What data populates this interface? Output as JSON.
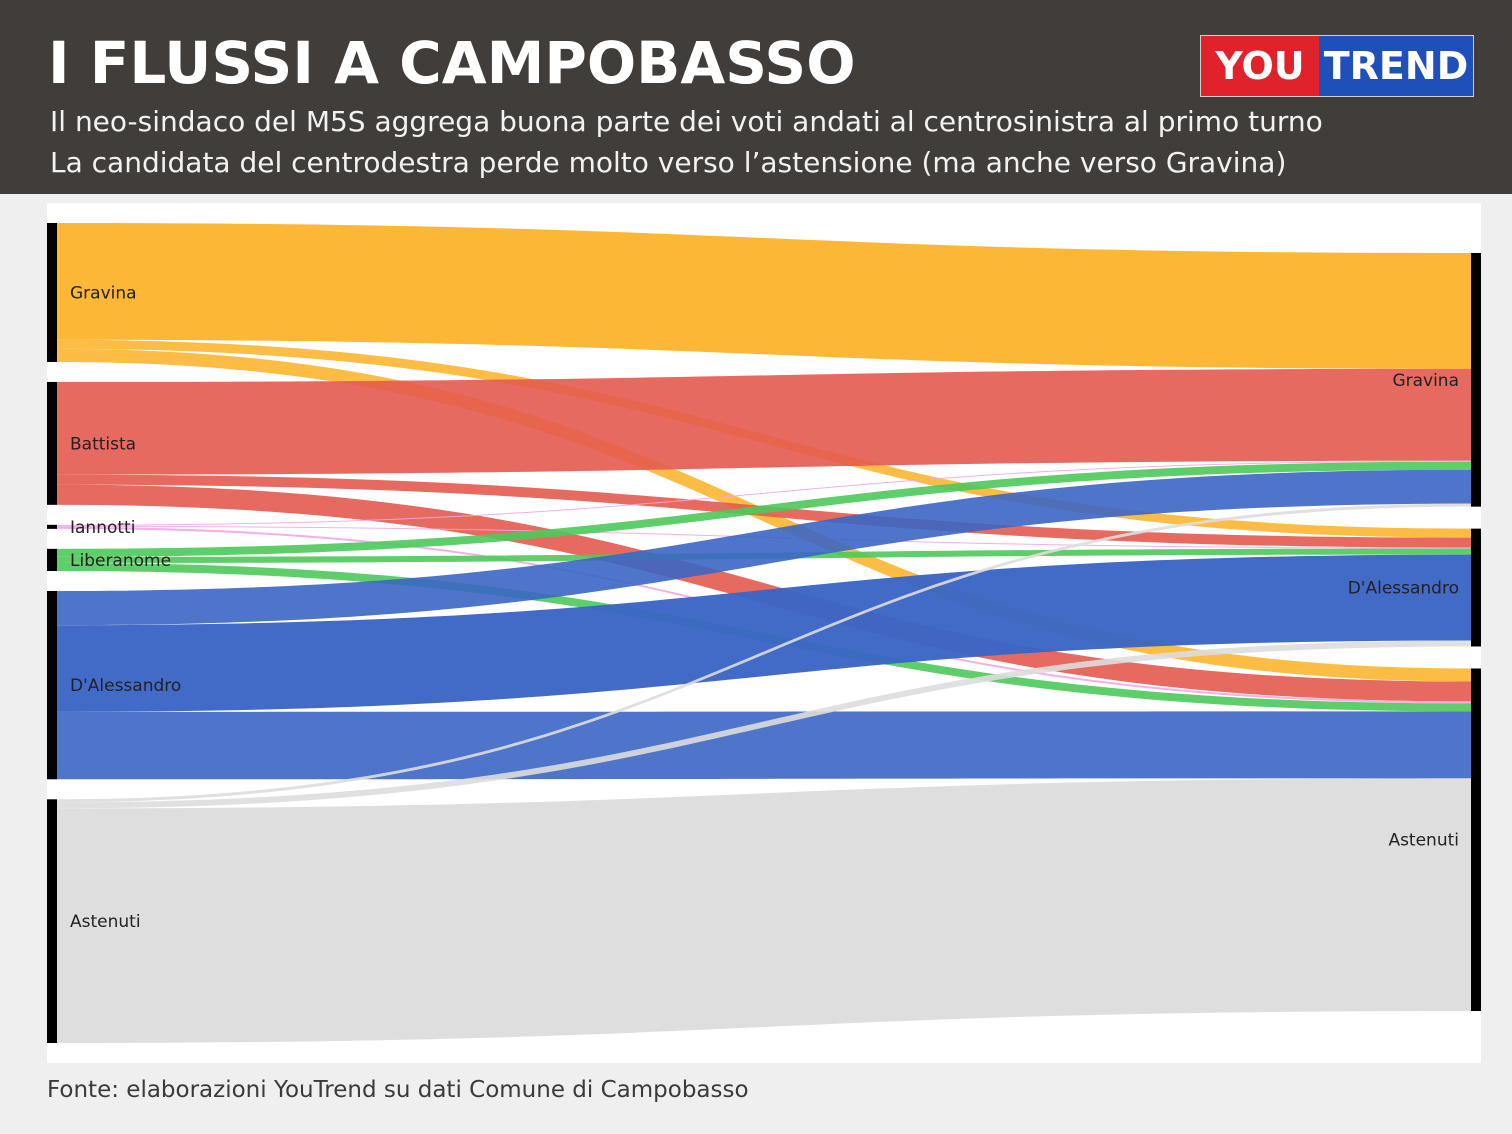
{
  "header": {
    "title": "I FLUSSI A CAMPOBASSO",
    "subtitle_1": "Il neo-sindaco del M5S aggrega buona parte dei voti andati al centrosinistra al primo turno",
    "subtitle_2": "La candidata del centrodestra perde molto verso l’astensione (ma anche verso Gravina)"
  },
  "logo": {
    "part1": "YOU",
    "part2": "TREND",
    "colors": {
      "part1": "#e1222b",
      "part2": "#1f4fb8"
    }
  },
  "footer": {
    "source": "Fonte: elaborazioni YouTrend su dati Comune di Campobasso"
  },
  "colors": {
    "Gravina": "#fdb52f",
    "Battista": "#e45a4f",
    "Iannotti": "#f4a6e6",
    "Liberanome": "#4cc95a",
    "D'Alessandro": "#3b66c4",
    "Astenuti": "#dddddd"
  },
  "chart_data": {
    "type": "sankey",
    "left_nodes": [
      {
        "name": "Gravina",
        "label": "Gravina",
        "value": 138
      },
      {
        "name": "Battista",
        "label": "Battista",
        "value": 122
      },
      {
        "name": "Iannotti",
        "label": "Iannotti",
        "value": 4
      },
      {
        "name": "Liberanome",
        "label": "Liberanome",
        "value": 22
      },
      {
        "name": "D'Alessandro",
        "label": "D'Alessandro",
        "value": 187
      },
      {
        "name": "Astenuti",
        "label": "Astenuti",
        "value": 242
      }
    ],
    "right_nodes": [
      {
        "name": "Gravina",
        "label": "Gravina"
      },
      {
        "name": "D'Alessandro",
        "label": "D'Alessandro"
      },
      {
        "name": "Astenuti",
        "label": "Astenuti"
      }
    ],
    "links": [
      {
        "source": "Gravina",
        "target": "Gravina",
        "value": 116
      },
      {
        "source": "Gravina",
        "target": "D'Alessandro",
        "value": 9
      },
      {
        "source": "Gravina",
        "target": "Astenuti",
        "value": 13
      },
      {
        "source": "Battista",
        "target": "Gravina",
        "value": 92
      },
      {
        "source": "Battista",
        "target": "D'Alessandro",
        "value": 10
      },
      {
        "source": "Battista",
        "target": "Astenuti",
        "value": 20
      },
      {
        "source": "Iannotti",
        "target": "Gravina",
        "value": 1
      },
      {
        "source": "Iannotti",
        "target": "D'Alessandro",
        "value": 1
      },
      {
        "source": "Iannotti",
        "target": "Astenuti",
        "value": 2
      },
      {
        "source": "Liberanome",
        "target": "Gravina",
        "value": 8
      },
      {
        "source": "Liberanome",
        "target": "D'Alessandro",
        "value": 6
      },
      {
        "source": "Liberanome",
        "target": "Astenuti",
        "value": 8
      },
      {
        "source": "D'Alessandro",
        "target": "Gravina",
        "value": 34
      },
      {
        "source": "D'Alessandro",
        "target": "D'Alessandro",
        "value": 86
      },
      {
        "source": "D'Alessandro",
        "target": "Astenuti",
        "value": 67
      },
      {
        "source": "Astenuti",
        "target": "Gravina",
        "value": 3
      },
      {
        "source": "Astenuti",
        "target": "D'Alessandro",
        "value": 6
      },
      {
        "source": "Astenuti",
        "target": "Astenuti",
        "value": 233
      }
    ]
  }
}
